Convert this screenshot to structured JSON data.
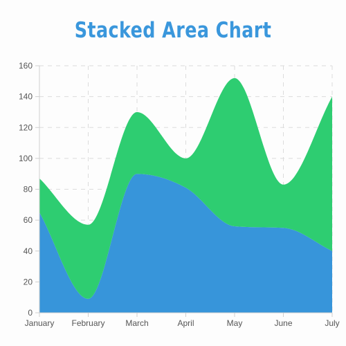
{
  "chart_data": {
    "type": "area",
    "stacked": true,
    "title": "Stacked Area Chart",
    "categories": [
      "January",
      "February",
      "March",
      "April",
      "May",
      "June",
      "July"
    ],
    "series": [
      {
        "values": [
          65,
          9,
          90,
          81,
          56,
          55,
          40
        ],
        "color": "#3795da"
      },
      {
        "values": [
          22,
          48,
          40,
          19,
          96,
          28,
          100
        ],
        "color": "#2ecd71"
      }
    ],
    "ylim": [
      0,
      160
    ],
    "yticks": [
      0,
      20,
      40,
      60,
      80,
      100,
      120,
      140,
      160
    ],
    "grid": true,
    "legend": "none"
  }
}
